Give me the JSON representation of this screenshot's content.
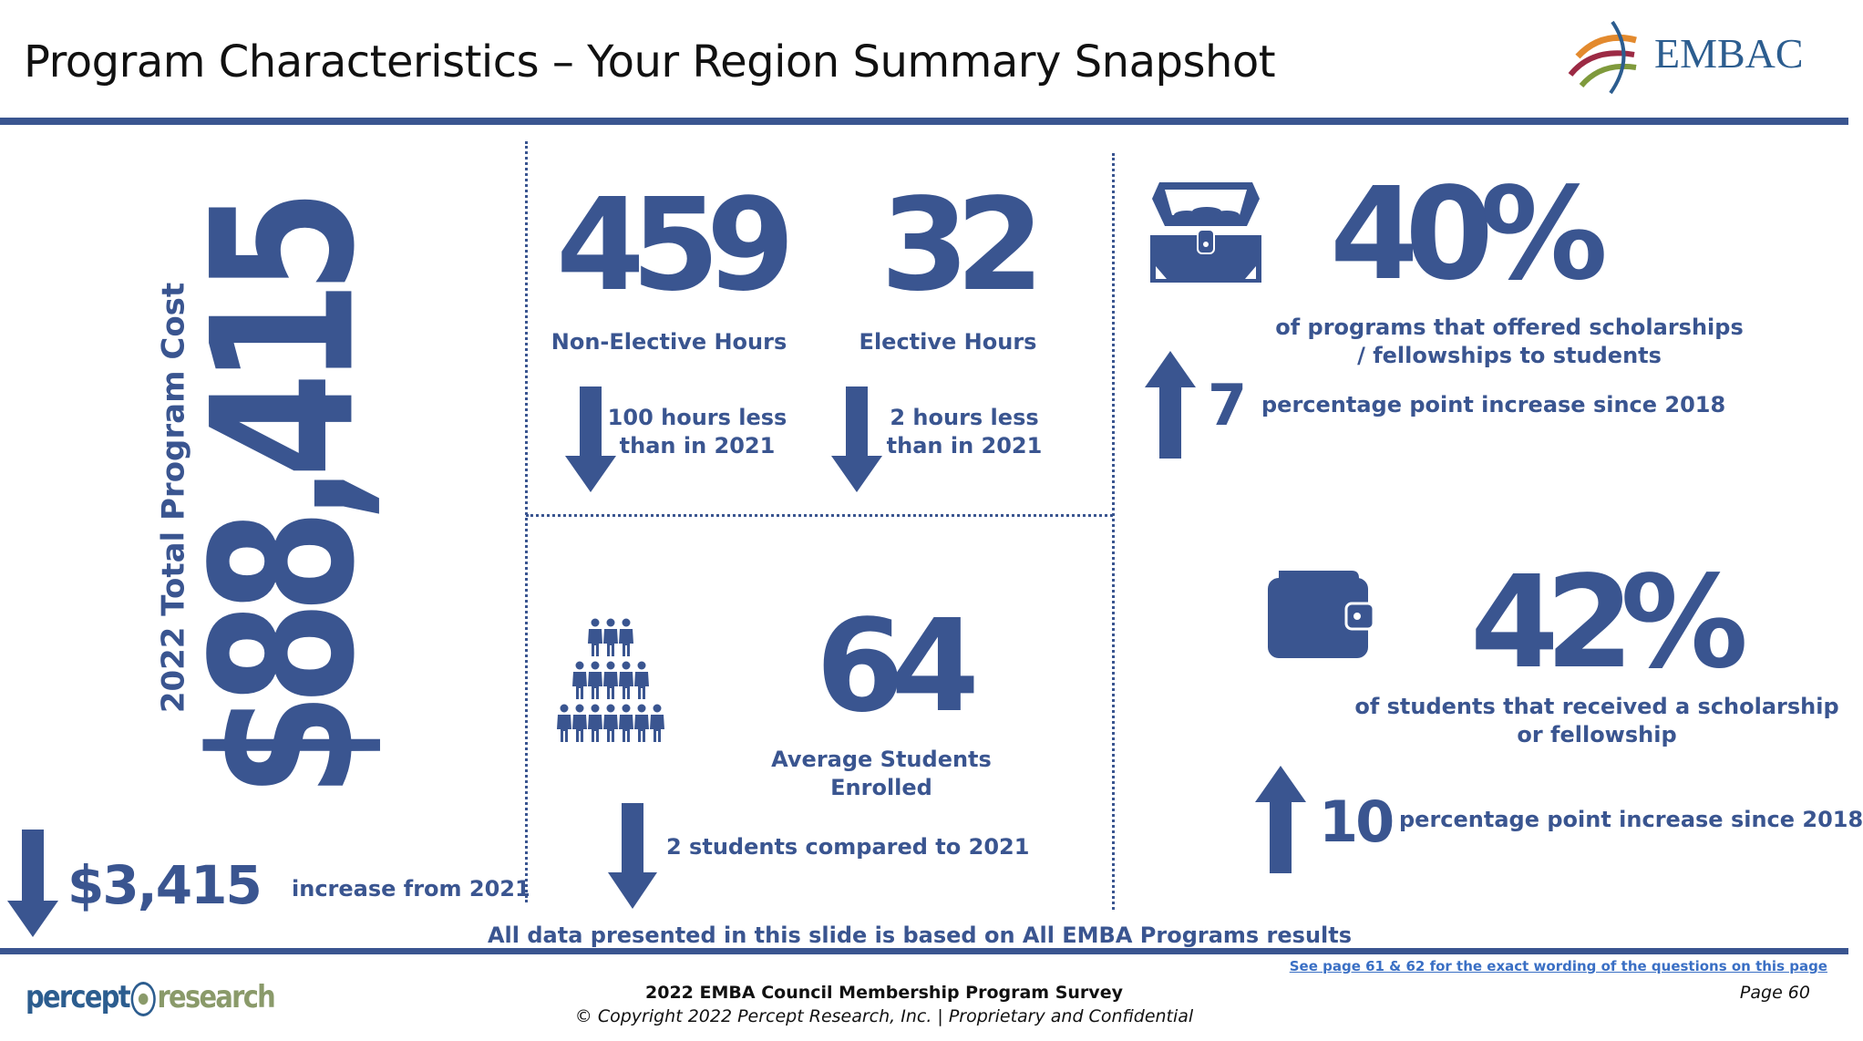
{
  "header": {
    "title": "Program Characteristics – Your Region Summary Snapshot",
    "logo_text": "EMBAC"
  },
  "total_cost": {
    "label": "2022 Total Program Cost",
    "value": "$88,415",
    "change_value": "$3,415",
    "change_label": "increase from 2021",
    "change_direction": "down-arrow-icon"
  },
  "hours": {
    "non_elective": {
      "value": "459",
      "label": "Non-Elective Hours",
      "change_line1": "100 hours less",
      "change_line2": "than in 2021"
    },
    "elective": {
      "value": "32",
      "label": "Elective Hours",
      "change_line1": "2 hours less",
      "change_line2": "than in 2021"
    }
  },
  "students": {
    "value": "64",
    "label_line1": "Average Students",
    "label_line2": "Enrolled",
    "change": "2 students compared to 2021"
  },
  "scholarships_programs": {
    "value": "40%",
    "line1": "of programs that offered scholarships",
    "line2": "/ fellowships to students",
    "change_value": "7",
    "change_label": "percentage point increase since 2018"
  },
  "scholarships_students": {
    "value": "42%",
    "line1": "of students that received a scholarship",
    "line2": "or fellowship",
    "change_value": "10",
    "change_label": "percentage point increase since 2018"
  },
  "note": "All data presented in this slide is based on All EMBA Programs results",
  "footer": {
    "logo_left": "percept",
    "logo_right": "research",
    "link": "See page 61 & 62 for the exact wording of the questions on this page",
    "survey": "2022 EMBA Council Membership Program Survey",
    "copyright": "© Copyright 2022 Percept Research, Inc. | Proprietary and Confidential",
    "page": "Page 60"
  },
  "colors": {
    "primary": "#3a5590"
  }
}
